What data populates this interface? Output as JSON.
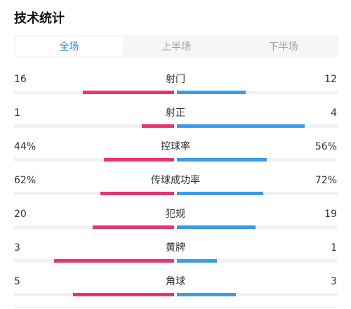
{
  "header": {
    "title": "技术统计"
  },
  "tabs": [
    {
      "label": "全场",
      "active": true
    },
    {
      "label": "上半场",
      "active": false
    },
    {
      "label": "下半场",
      "active": false
    }
  ],
  "colors": {
    "home": "#e8336e",
    "away": "#3a9be8",
    "tab_active": "#2f80ed"
  },
  "stats": [
    {
      "label": "射门",
      "left": "16",
      "right": "12",
      "left_fill": 0.57,
      "right_fill": 0.43
    },
    {
      "label": "射正",
      "left": "1",
      "right": "4",
      "left_fill": 0.2,
      "right_fill": 0.8
    },
    {
      "label": "控球率",
      "left": "44%",
      "right": "56%",
      "left_fill": 0.44,
      "right_fill": 0.56
    },
    {
      "label": "传球成功率",
      "left": "62%",
      "right": "72%",
      "left_fill": 0.46,
      "right_fill": 0.54
    },
    {
      "label": "犯规",
      "left": "20",
      "right": "19",
      "left_fill": 0.51,
      "right_fill": 0.49
    },
    {
      "label": "黄牌",
      "left": "3",
      "right": "1",
      "left_fill": 0.75,
      "right_fill": 0.25
    },
    {
      "label": "角球",
      "left": "5",
      "right": "3",
      "left_fill": 0.63,
      "right_fill": 0.37
    }
  ]
}
